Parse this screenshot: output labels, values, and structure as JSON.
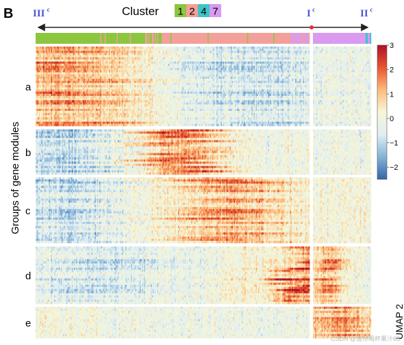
{
  "panel_label": "B",
  "chart_data": {
    "type": "heatmap",
    "title": "",
    "ylabel": "Groups of gene modules",
    "header": {
      "title": "Cluster",
      "legend": [
        {
          "label": "1",
          "color": "#8cc63f"
        },
        {
          "label": "2",
          "color": "#f4a09a"
        },
        {
          "label": "4",
          "color": "#3fc4c8"
        },
        {
          "label": "7",
          "color": "#d99af0"
        }
      ],
      "trajectory_markers": [
        {
          "label": "III",
          "sup": "c",
          "position": "left"
        },
        {
          "label": "I",
          "sup": "c",
          "position": "split"
        },
        {
          "label": "II",
          "sup": "c",
          "position": "right"
        }
      ]
    },
    "rows": [
      {
        "group": "a",
        "high_region": "left (cluster 1)"
      },
      {
        "group": "b",
        "high_region": "center-left (cluster 1–2 transition)"
      },
      {
        "group": "c",
        "high_region": "center (cluster 2)"
      },
      {
        "group": "d",
        "high_region": "right end of branch 1 and start of branch 2"
      },
      {
        "group": "e",
        "high_region": "branch 2 (cluster 7)"
      }
    ],
    "colorbar": {
      "colors": [
        "#3366a9",
        "#83b3d6",
        "#e0eef4",
        "#f7f7d5",
        "#fcbc7c",
        "#e8552f",
        "#b11026"
      ],
      "ticks": [
        3,
        2,
        1,
        0,
        -1,
        -2
      ],
      "range": [
        -2.5,
        3
      ]
    }
  },
  "side_label": "UMAP 2",
  "watermark": "CSDN @请你喝杯果汁65"
}
